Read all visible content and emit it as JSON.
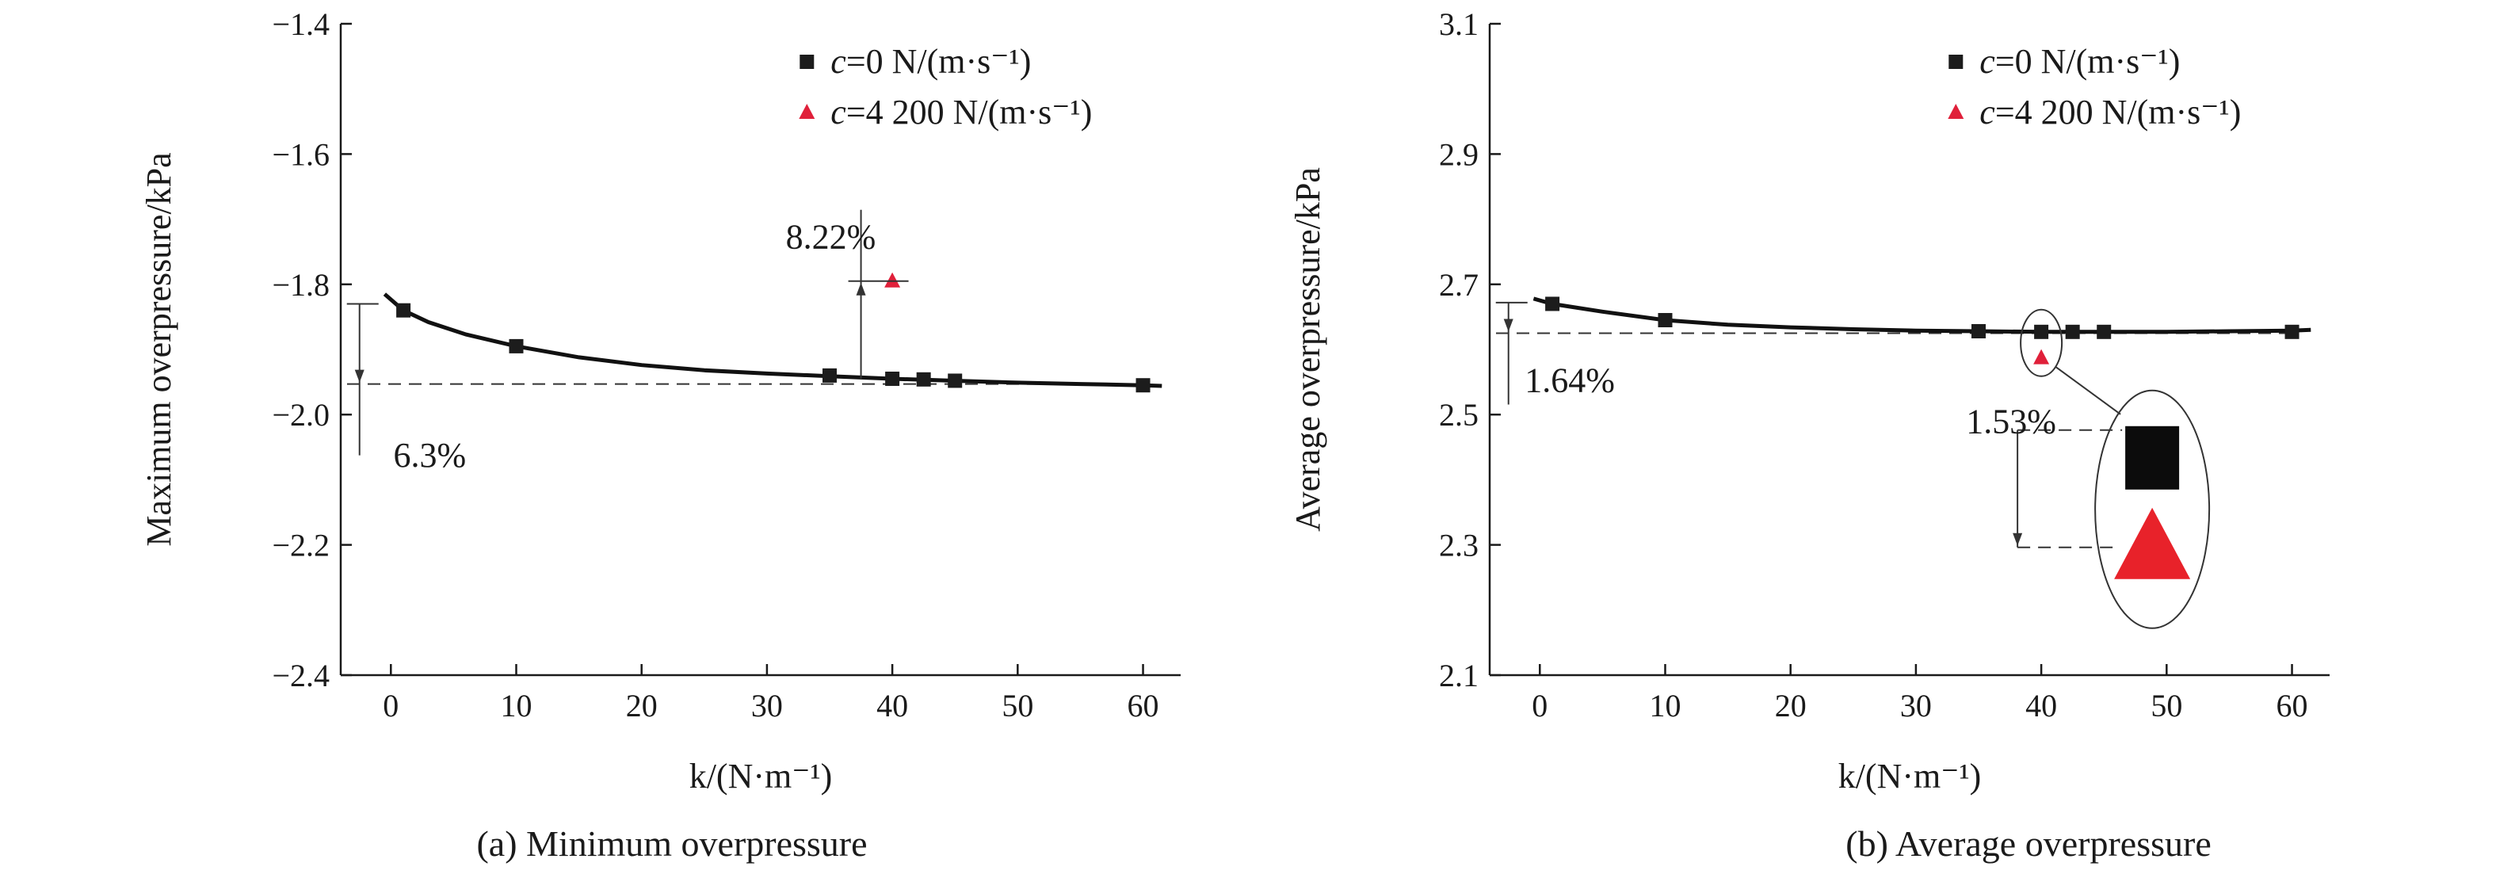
{
  "chart_data": [
    {
      "type": "scatter",
      "caption": "(a) Minimum overpressure",
      "xlabel": "k/(N·m⁻¹)",
      "ylabel": "Maximum overpressure/kPa",
      "xlim": [
        -4,
        63
      ],
      "ylim": [
        -2.4,
        -1.4
      ],
      "xticks": [
        0,
        10,
        20,
        30,
        40,
        50,
        60
      ],
      "yticks": [
        -2.4,
        -2.2,
        -2.0,
        -1.8,
        -1.6,
        -1.4
      ],
      "ytick_labels": [
        "−2.4",
        "−2.2",
        "−2.0",
        "−1.8",
        "−1.6",
        "−1.4"
      ],
      "legend_position": "top-right",
      "series": [
        {
          "name": "c=0 N/(m·s⁻¹)",
          "legend_prefix": "c",
          "legend_suffix": "=0 N/(m·s⁻¹)",
          "marker": "square",
          "color": "#1c1c1c",
          "x": [
            1,
            10,
            35,
            40,
            42.5,
            45,
            60
          ],
          "y": [
            -1.84,
            -1.895,
            -1.94,
            -1.945,
            -1.946,
            -1.948,
            -1.955
          ]
        },
        {
          "name": "c=4 200 N/(m·s⁻¹)",
          "legend_prefix": "c",
          "legend_suffix": "=4 200 N/(m·s⁻¹)",
          "marker": "triangle",
          "color": "#e0203a",
          "x": [
            40
          ],
          "y": [
            -1.795
          ]
        }
      ],
      "fit_curve": {
        "x": [
          -0.5,
          1,
          3,
          6,
          10,
          15,
          20,
          25,
          30,
          35,
          40,
          45,
          50,
          55,
          60,
          61.5
        ],
        "y": [
          -1.815,
          -1.84,
          -1.858,
          -1.877,
          -1.895,
          -1.912,
          -1.924,
          -1.932,
          -1.937,
          -1.941,
          -1.945,
          -1.948,
          -1.951,
          -1.953,
          -1.955,
          -1.956
        ]
      },
      "annotations": [
        {
          "text": "6.3%",
          "kind": "decrease",
          "x": -2.5,
          "y_from": -1.83,
          "y_to": -1.953,
          "text_x": 0.2,
          "text_y": -2.08
        },
        {
          "text": "8.22%",
          "kind": "increase",
          "x": 37.5,
          "y_from": -1.945,
          "y_to": -1.795,
          "text_x": 31.5,
          "text_y": -1.745
        }
      ],
      "ref_line_y": -1.953
    },
    {
      "type": "scatter",
      "caption": "(b) Average overpressure",
      "xlabel": "k/(N·m⁻¹)",
      "ylabel": "Average overpressure/kPa",
      "xlim": [
        -4,
        63
      ],
      "ylim": [
        2.1,
        3.1
      ],
      "xticks": [
        0,
        10,
        20,
        30,
        40,
        50,
        60
      ],
      "yticks": [
        2.1,
        2.3,
        2.5,
        2.7,
        2.9,
        3.1
      ],
      "ytick_labels": [
        "2.1",
        "2.3",
        "2.5",
        "2.7",
        "2.9",
        "3.1"
      ],
      "legend_position": "top-right",
      "series": [
        {
          "name": "c=0 N/(m·s⁻¹)",
          "legend_prefix": "c",
          "legend_suffix": "=0 N/(m·s⁻¹)",
          "marker": "square",
          "color": "#1c1c1c",
          "x": [
            1,
            10,
            35,
            40,
            42.5,
            45,
            60
          ],
          "y": [
            2.67,
            2.645,
            2.628,
            2.627,
            2.627,
            2.627,
            2.627
          ]
        },
        {
          "name": "c=4 200 N/(m·s⁻¹)",
          "legend_prefix": "c",
          "legend_suffix": "=4 200 N/(m·s⁻¹)",
          "marker": "triangle",
          "color": "#e0203a",
          "x": [
            40
          ],
          "y": [
            2.587
          ]
        }
      ],
      "fit_curve": {
        "x": [
          -0.5,
          1,
          5,
          10,
          15,
          20,
          25,
          30,
          35,
          40,
          45,
          50,
          55,
          60,
          61.5
        ],
        "y": [
          2.678,
          2.67,
          2.658,
          2.645,
          2.638,
          2.634,
          2.631,
          2.629,
          2.628,
          2.627,
          2.627,
          2.627,
          2.628,
          2.629,
          2.63
        ]
      },
      "annotations": [
        {
          "text": "1.64%",
          "kind": "decrease",
          "x": -2.5,
          "y_from": 2.672,
          "y_to": 2.625,
          "text_x": -1.2,
          "text_y": 2.535
        },
        {
          "text": "1.53%",
          "kind": "zoom",
          "x": 40,
          "y": 2.61,
          "text_x": 34,
          "text_y": 2.34
        }
      ],
      "ref_line_y": 2.625
    }
  ]
}
